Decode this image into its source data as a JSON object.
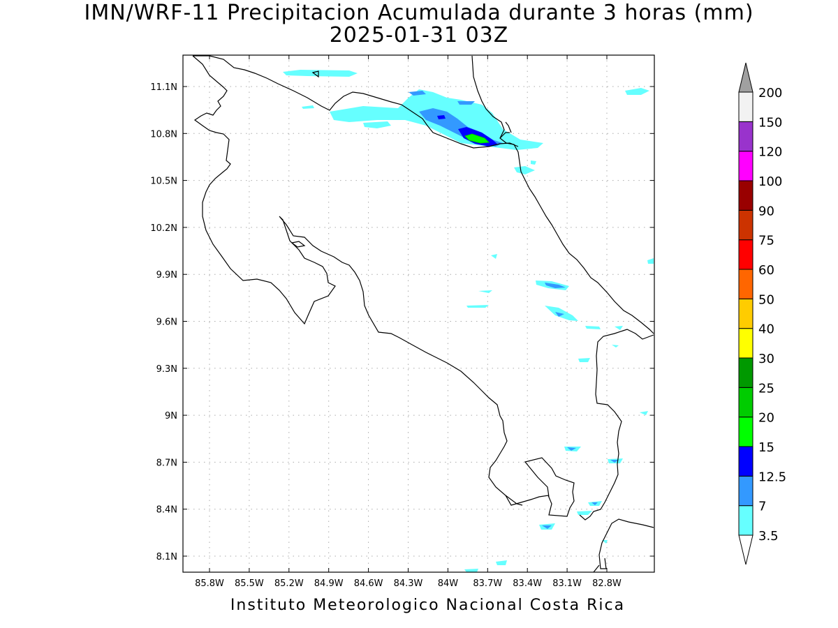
{
  "title": {
    "line1": "IMN/WRF-11 Precipitacion Acumulada durante 3 horas (mm)",
    "line2": "2025-01-31 03Z"
  },
  "footer": "Instituto Meteorologico Nacional Costa Rica",
  "map": {
    "lon_range": [
      -86.0,
      -83.0
    ],
    "lat_range": [
      8.0,
      11.3
    ],
    "grid": "dotted",
    "lon_labels": [
      "85.8W",
      "85.5W",
      "85.2W",
      "84.9W",
      "84.6W",
      "84.3W",
      "84W",
      "83.7W",
      "83.4W",
      "83.1W",
      "82.8W"
    ],
    "lat_labels": [
      "11.1N",
      "10.8N",
      "10.5N",
      "10.2N",
      "9.9N",
      "9.6N",
      "9.3N",
      "9N",
      "8.7N",
      "8.4N",
      "8.1N"
    ]
  },
  "legend": {
    "levels": [
      {
        "label": "3.5",
        "color": "#66ffff"
      },
      {
        "label": "7",
        "color": "#3399ff"
      },
      {
        "label": "12.5",
        "color": "#0000ff"
      },
      {
        "label": "15",
        "color": "#00ff00"
      },
      {
        "label": "20",
        "color": "#00cc00"
      },
      {
        "label": "25",
        "color": "#009900"
      },
      {
        "label": "30",
        "color": "#ffff00"
      },
      {
        "label": "40",
        "color": "#ffcc00"
      },
      {
        "label": "50",
        "color": "#ff6600"
      },
      {
        "label": "60",
        "color": "#ff0000"
      },
      {
        "label": "75",
        "color": "#cc3300"
      },
      {
        "label": "90",
        "color": "#990000"
      },
      {
        "label": "100",
        "color": "#ff00ff"
      },
      {
        "label": "120",
        "color": "#9933cc"
      },
      {
        "label": "150",
        "color": "#f2f2f2"
      },
      {
        "label": "200",
        "color": "#a0a0a0"
      }
    ]
  }
}
